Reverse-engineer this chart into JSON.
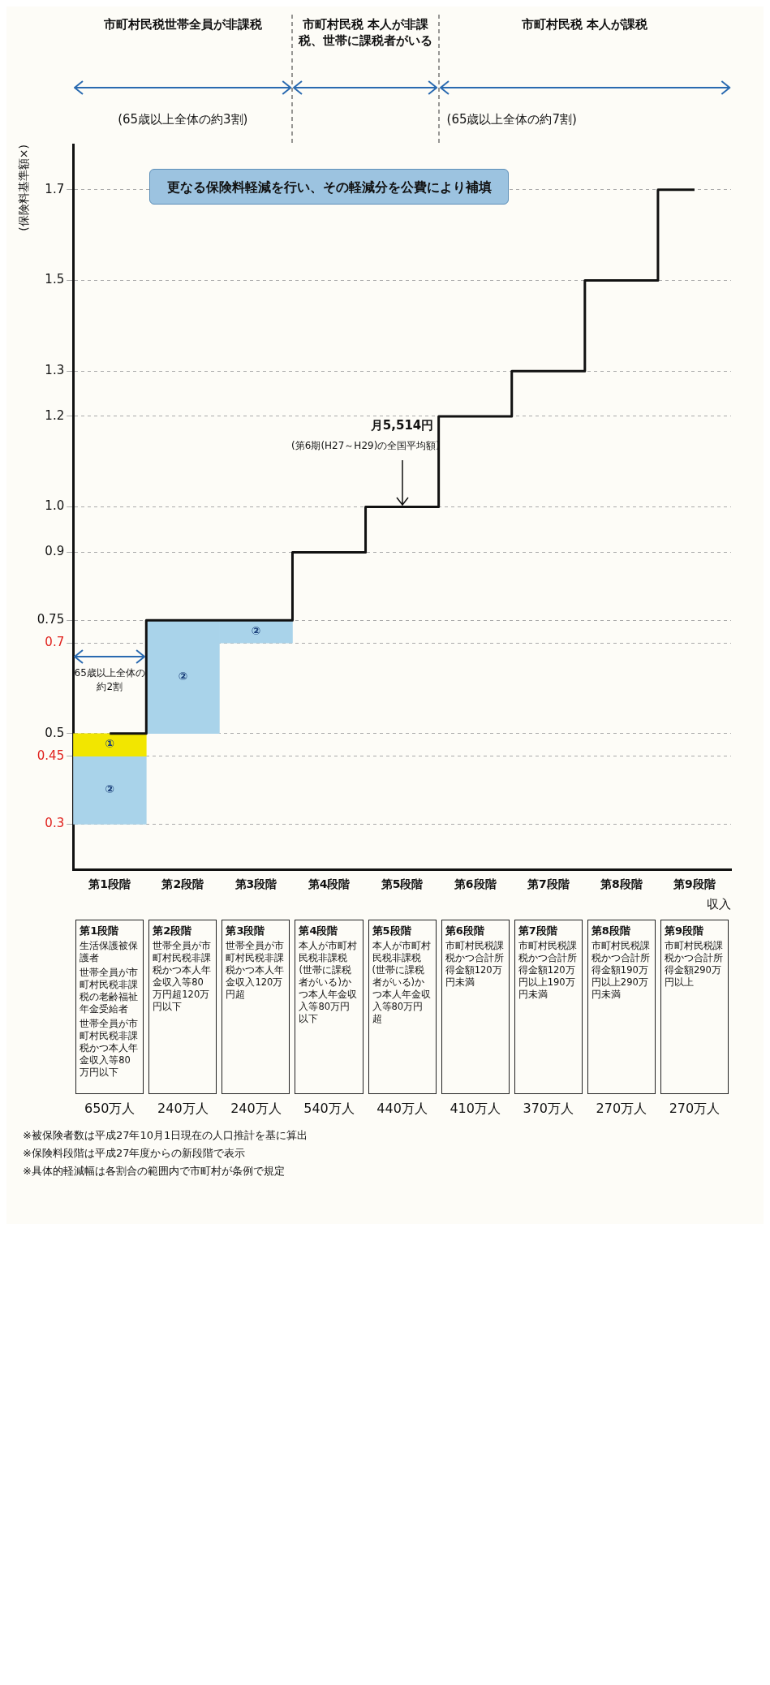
{
  "chart_data": {
    "type": "step",
    "categories": [
      "第1段階",
      "第2段階",
      "第3段階",
      "第4段階",
      "第5段階",
      "第6段階",
      "第7段階",
      "第8段階",
      "第9段階"
    ],
    "series": [
      {
        "color": "#111111",
        "values": [
          0.5,
          0.75,
          0.75,
          0.9,
          1.0,
          1.2,
          1.3,
          1.5,
          1.7
        ]
      },
      {
        "type": "bar",
        "name": "①",
        "color": "#f2e600",
        "base": [
          0.45,
          null,
          null,
          null,
          null,
          null,
          null,
          null,
          null
        ],
        "values": [
          0.05,
          null,
          null,
          null,
          null,
          null,
          null,
          null,
          null
        ]
      },
      {
        "type": "bar",
        "name": "②",
        "color": "#a9d3ea",
        "base": [
          0.3,
          0.5,
          0.7,
          null,
          null,
          null,
          null,
          null,
          null
        ],
        "values": [
          0.15,
          0.25,
          0.05,
          null,
          null,
          null,
          null,
          null,
          null
        ]
      }
    ],
    "ylim": [
      0.2,
      1.8
    ],
    "yticks": [
      1.7,
      1.5,
      1.3,
      1.2,
      {
        "value": 1,
        "label": "1.0"
      },
      0.9,
      0.75,
      0.7,
      0.5,
      0.45,
      0.3
    ],
    "ylabel": "(保険料基準額×)",
    "xlabel": "収入",
    "grid": "y",
    "annotations": [
      "市町村民税世帯全員が非課税",
      "市町村民税 本人が非課税、世帯に課税者がいる",
      "市町村民税 本人が課税",
      "(65歳以上全体の約3割)",
      "(65歳以上全体の約7割)",
      "65歳以上全体の約2割",
      "月5,514円",
      {
        "text": "(第6期(H27～H29)の全国平均額)",
        "x": "第5段階",
        "y": 1.0
      },
      "更なる保険料軽減を行い、その軽減分を公費により補填",
      "生活保護被保護者",
      "世帯全員が市町村民税非課税の老齢福祉年金受給者",
      "世帯全員が市町村民税非課税かつ本人年金収入等80万円以下",
      "世帯全員が市町村民税非課税かつ本人年金収入等80万円超120万円以下",
      "世帯全員が市町村民税非課税かつ本人年金収入120万円超",
      "本人が市町村民税非課税(世帯に課税者がいる)かつ本人年金収入等80万円以下",
      "本人が市町村民税非課税(世帯に課税者がいる)かつ本人年金収入等80万円超",
      "市町村民税課税かつ合計所得金額120万円未満",
      "市町村民税課税かつ合計所得金額120万円以上190万円未満",
      "市町村民税課税かつ合計所得金額190万円以上290万円未満",
      "市町村民税課税かつ合計所得金額290万円以上",
      "650万人",
      "240万人",
      "240万人",
      "540万人",
      "440万人",
      "410万人",
      "370万人",
      "270万人",
      "270万人",
      "※被保険者数は平成27年10月1日現在の人口推計を基に算出",
      "※保険料段階は平成27年度からの新段階で表示",
      "※具体的軽減幅は各割合の範囲内で市町村が条例で規定"
    ]
  }
}
